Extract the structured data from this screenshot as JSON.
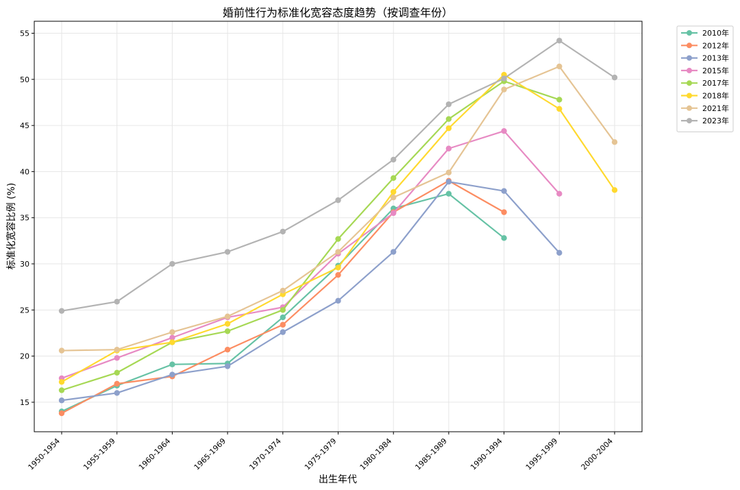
{
  "chart_data": {
    "type": "line",
    "title": "婚前性行为标准化宽容态度趋势（按调查年份）",
    "xlabel": "出生年代",
    "ylabel": "标准化宽容比例 (%)",
    "categories": [
      "1950-1954",
      "1955-1959",
      "1960-1964",
      "1965-1969",
      "1970-1974",
      "1975-1979",
      "1980-1984",
      "1985-1989",
      "1990-1994",
      "1995-1999",
      "2000-2004"
    ],
    "ylim": [
      11.8,
      56.3
    ],
    "yticks": [
      15,
      20,
      25,
      30,
      35,
      40,
      45,
      50,
      55
    ],
    "grid": true,
    "legend": "outside-top-right",
    "series": [
      {
        "name": "2010年",
        "color": "#66c2a5",
        "values": [
          14.0,
          16.8,
          19.1,
          19.2,
          24.2,
          29.8,
          36.0,
          37.6,
          32.8,
          null,
          null
        ]
      },
      {
        "name": "2012年",
        "color": "#fc8d62",
        "values": [
          13.8,
          17.0,
          17.8,
          20.7,
          23.4,
          28.8,
          35.6,
          39.0,
          35.6,
          null,
          null
        ]
      },
      {
        "name": "2013年",
        "color": "#8da0cb",
        "values": [
          15.2,
          16.0,
          18.0,
          18.9,
          22.6,
          26.0,
          31.3,
          38.9,
          37.9,
          31.2,
          null
        ]
      },
      {
        "name": "2015年",
        "color": "#e78ac3",
        "values": [
          17.6,
          19.8,
          22.0,
          24.2,
          25.3,
          31.1,
          35.5,
          42.5,
          44.4,
          37.6,
          null
        ]
      },
      {
        "name": "2017年",
        "color": "#a6d854",
        "values": [
          16.3,
          18.2,
          21.5,
          22.7,
          25.0,
          32.7,
          39.3,
          45.7,
          49.8,
          47.8,
          null
        ]
      },
      {
        "name": "2018年",
        "color": "#ffd92f",
        "values": [
          17.2,
          20.6,
          21.5,
          23.5,
          26.7,
          29.6,
          37.8,
          44.7,
          50.5,
          46.8,
          38.0
        ]
      },
      {
        "name": "2021年",
        "color": "#e5c494",
        "values": [
          20.6,
          20.7,
          22.6,
          24.3,
          27.1,
          31.3,
          37.2,
          39.9,
          48.9,
          51.4,
          43.2
        ]
      },
      {
        "name": "2023年",
        "color": "#b3b3b3",
        "values": [
          24.9,
          25.9,
          30.0,
          31.3,
          33.5,
          36.9,
          41.3,
          47.3,
          50.1,
          54.2,
          50.2
        ]
      }
    ]
  }
}
